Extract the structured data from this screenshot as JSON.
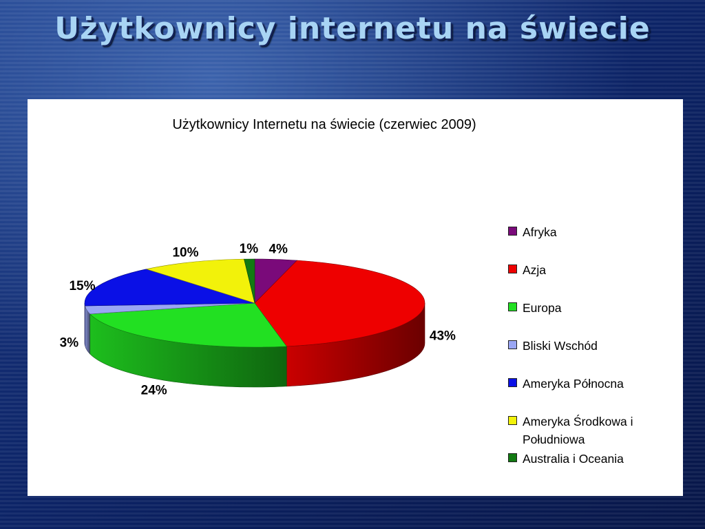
{
  "slide": {
    "title": "Użytkownicy internetu na świecie"
  },
  "chart_data": {
    "type": "pie",
    "title": "Użytkownicy Internetu na świecie (czerwiec 2009)",
    "three_d": true,
    "legend_position": "right",
    "label_format": "percent",
    "categories": [
      "Afryka",
      "Azja",
      "Europa",
      "Bliski Wschód",
      "Ameryka Północna",
      "Ameryka Środkowa i Południowa",
      "Australia  i Oceania"
    ],
    "values": [
      4,
      43,
      24,
      3,
      15,
      10,
      1
    ],
    "labels": [
      "4%",
      "43%",
      "24%",
      "3%",
      "15%",
      "10%",
      "1%"
    ],
    "colors": [
      "#7a0a7a",
      "#ee0000",
      "#22e022",
      "#9aa6f4",
      "#0a10e6",
      "#f2f20a",
      "#127a12"
    ]
  }
}
